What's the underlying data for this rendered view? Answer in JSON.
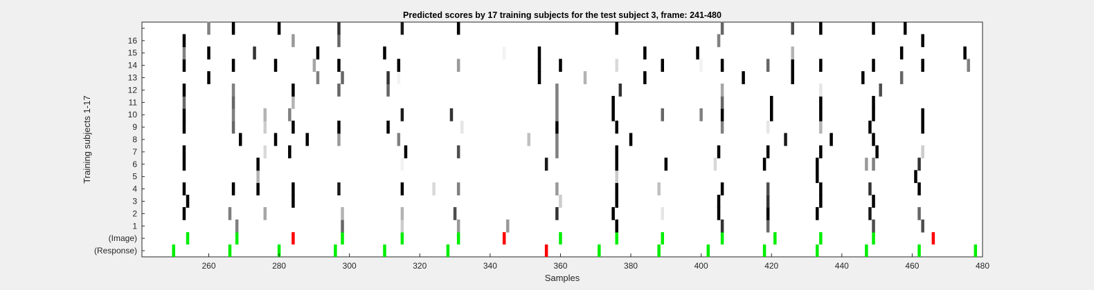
{
  "chart_data": {
    "type": "heatmap",
    "title": "Predicted scores by 17 training subjects for the test subject 3, frame: 241-480",
    "xlabel": "Samples",
    "ylabel": "Training subjects 1-17",
    "xlim": [
      241,
      480
    ],
    "x_ticks": [
      260,
      280,
      300,
      320,
      340,
      360,
      380,
      400,
      420,
      440,
      460,
      480
    ],
    "rows": [
      "(Response)",
      "(Image)",
      "1",
      "2",
      "3",
      "4",
      "5",
      "6",
      "7",
      "8",
      "9",
      "10",
      "11",
      "12",
      "13",
      "14",
      "15",
      "16",
      ""
    ],
    "colors": {
      "positive": "#00ee00",
      "negative": "#ff0000",
      "score_high": "#000000",
      "background": "#ffffff"
    },
    "marks_format": "[sample, score 0-1]; event rows use 'g' (green) or 'r' (red)",
    "response": [
      [
        250,
        "g"
      ],
      [
        266,
        "g"
      ],
      [
        280,
        "g"
      ],
      [
        296,
        "g"
      ],
      [
        310,
        "g"
      ],
      [
        328,
        "g"
      ],
      [
        356,
        "r"
      ],
      [
        371,
        "g"
      ],
      [
        388,
        "g"
      ],
      [
        402,
        "g"
      ],
      [
        418,
        "g"
      ],
      [
        433,
        "g"
      ],
      [
        447,
        "g"
      ],
      [
        462,
        "g"
      ],
      [
        478,
        "g"
      ]
    ],
    "image": [
      [
        254,
        "g"
      ],
      [
        268,
        "g"
      ],
      [
        284,
        "r"
      ],
      [
        298,
        "g"
      ],
      [
        315,
        "g"
      ],
      [
        331,
        "g"
      ],
      [
        344,
        "r"
      ],
      [
        360,
        "g"
      ],
      [
        376,
        "g"
      ],
      [
        389,
        "g"
      ],
      [
        406,
        "g"
      ],
      [
        421,
        "g"
      ],
      [
        434,
        "g"
      ],
      [
        449,
        "g"
      ],
      [
        466,
        "r"
      ]
    ],
    "subjects": [
      [
        [
          268,
          0.5
        ],
        [
          298,
          0.6
        ],
        [
          315,
          0.2
        ],
        [
          331,
          0.4
        ],
        [
          345,
          0.4
        ],
        [
          376,
          1
        ],
        [
          406,
          0.8
        ],
        [
          419,
          0.6
        ],
        [
          449,
          0.7
        ],
        [
          463,
          0.7
        ]
      ],
      [
        [
          253,
          1
        ],
        [
          266,
          0.5
        ],
        [
          276,
          0.35
        ],
        [
          298,
          0.3
        ],
        [
          315,
          0.3
        ],
        [
          330,
          0.7
        ],
        [
          359,
          0.8
        ],
        [
          375,
          1
        ],
        [
          389,
          0.1
        ],
        [
          405,
          1
        ],
        [
          419,
          1
        ],
        [
          433,
          1
        ],
        [
          448,
          0.9
        ],
        [
          462,
          0.6
        ]
      ],
      [
        [
          254,
          1
        ],
        [
          284,
          1
        ],
        [
          360,
          0.2
        ],
        [
          376,
          1
        ],
        [
          405,
          1
        ],
        [
          419,
          0.8
        ],
        [
          434,
          1
        ],
        [
          449,
          1
        ]
      ],
      [
        [
          253,
          1
        ],
        [
          267,
          1
        ],
        [
          274,
          1
        ],
        [
          284,
          1
        ],
        [
          297,
          0.9
        ],
        [
          315,
          1
        ],
        [
          324,
          0.15
        ],
        [
          331,
          0.5
        ],
        [
          359,
          0.4
        ],
        [
          376,
          1
        ],
        [
          388,
          0.25
        ],
        [
          406,
          1
        ],
        [
          419,
          0.7
        ],
        [
          434,
          1
        ],
        [
          448,
          0.8
        ],
        [
          462,
          1
        ]
      ],
      [
        [
          274,
          0.3
        ],
        [
          376,
          0.2
        ],
        [
          433,
          1
        ],
        [
          461,
          1
        ]
      ],
      [
        [
          253,
          1
        ],
        [
          274,
          1
        ],
        [
          315,
          0.05
        ],
        [
          356,
          0.9
        ],
        [
          376,
          1
        ],
        [
          390,
          1
        ],
        [
          404,
          0.15
        ],
        [
          418,
          1
        ],
        [
          433,
          1
        ],
        [
          447,
          0.4
        ],
        [
          449,
          0.5
        ],
        [
          462,
          0.8
        ]
      ],
      [
        [
          253,
          1
        ],
        [
          276,
          0.15
        ],
        [
          283,
          1
        ],
        [
          316,
          1
        ],
        [
          331,
          0.7
        ],
        [
          359,
          0.5
        ],
        [
          376,
          1
        ],
        [
          405,
          1
        ],
        [
          419,
          1
        ],
        [
          434,
          1
        ],
        [
          450,
          1
        ],
        [
          463,
          0.2
        ]
      ],
      [
        [
          269,
          1
        ],
        [
          279,
          1
        ],
        [
          288,
          1
        ],
        [
          297,
          0.4
        ],
        [
          314,
          0.5
        ],
        [
          351,
          0.25
        ],
        [
          359,
          0.5
        ],
        [
          380,
          1
        ],
        [
          424,
          0.9
        ],
        [
          437,
          1
        ],
        [
          449,
          1
        ]
      ],
      [
        [
          253,
          1
        ],
        [
          267,
          0.6
        ],
        [
          276,
          0.2
        ],
        [
          284,
          1
        ],
        [
          297,
          1
        ],
        [
          311,
          1
        ],
        [
          332,
          0.1
        ],
        [
          359,
          1
        ],
        [
          376,
          1
        ],
        [
          406,
          0.5
        ],
        [
          419,
          0.1
        ],
        [
          434,
          0.3
        ],
        [
          448,
          1
        ],
        [
          463,
          1
        ]
      ],
      [
        [
          253,
          1
        ],
        [
          267,
          0.5
        ],
        [
          276,
          0.3
        ],
        [
          283,
          0.5
        ],
        [
          315,
          0.9
        ],
        [
          329,
          0.8
        ],
        [
          359,
          0.5
        ],
        [
          375,
          1
        ],
        [
          389,
          0.6
        ],
        [
          400,
          0.5
        ],
        [
          406,
          1
        ],
        [
          420,
          1
        ],
        [
          434,
          1
        ],
        [
          449,
          1
        ],
        [
          463,
          1
        ]
      ],
      [
        [
          253,
          0.6
        ],
        [
          267,
          0.6
        ],
        [
          284,
          0.3
        ],
        [
          359,
          0.5
        ],
        [
          375,
          1
        ],
        [
          406,
          0.6
        ],
        [
          420,
          1
        ],
        [
          434,
          1
        ],
        [
          449,
          1
        ]
      ],
      [
        [
          253,
          1
        ],
        [
          267,
          0.5
        ],
        [
          284,
          1
        ],
        [
          297,
          0.6
        ],
        [
          311,
          0.6
        ],
        [
          359,
          0.5
        ],
        [
          377,
          0.8
        ],
        [
          406,
          0.35
        ],
        [
          434,
          0.1
        ],
        [
          451,
          0.7
        ]
      ],
      [
        [
          260,
          1
        ],
        [
          291,
          0.5
        ],
        [
          298,
          0.6
        ],
        [
          311,
          0.8
        ],
        [
          314,
          0.05
        ],
        [
          354,
          1
        ],
        [
          367,
          0.3
        ],
        [
          384,
          1
        ],
        [
          412,
          1
        ],
        [
          426,
          1
        ],
        [
          446,
          1
        ],
        [
          457,
          0.6
        ]
      ],
      [
        [
          253,
          1
        ],
        [
          267,
          1
        ],
        [
          279,
          1
        ],
        [
          290,
          0.35
        ],
        [
          297,
          1
        ],
        [
          314,
          1
        ],
        [
          331,
          0.4
        ],
        [
          354,
          1
        ],
        [
          360,
          1
        ],
        [
          376,
          0.15
        ],
        [
          389,
          1
        ],
        [
          400,
          0.05
        ],
        [
          406,
          1
        ],
        [
          419,
          0.6
        ],
        [
          426,
          1
        ],
        [
          434,
          1
        ],
        [
          449,
          1
        ],
        [
          463,
          1
        ],
        [
          476,
          0.5
        ]
      ],
      [
        [
          253,
          0.5
        ],
        [
          260,
          1
        ],
        [
          273,
          0.8
        ],
        [
          291,
          1
        ],
        [
          310,
          1
        ],
        [
          344,
          0.05
        ],
        [
          354,
          1
        ],
        [
          384,
          1
        ],
        [
          399,
          1
        ],
        [
          426,
          0.3
        ],
        [
          457,
          1
        ],
        [
          475,
          1
        ]
      ],
      [
        [
          253,
          1
        ],
        [
          284,
          0.4
        ],
        [
          297,
          0.6
        ],
        [
          405,
          0.5
        ],
        [
          463,
          1
        ]
      ],
      [
        [
          260,
          0.5
        ],
        [
          267,
          1
        ],
        [
          280,
          1
        ],
        [
          297,
          0.8
        ],
        [
          315,
          0.9
        ],
        [
          331,
          1
        ],
        [
          376,
          1
        ],
        [
          406,
          0.6
        ],
        [
          426,
          0.7
        ],
        [
          434,
          1
        ],
        [
          449,
          1
        ],
        [
          458,
          1
        ]
      ]
    ]
  }
}
